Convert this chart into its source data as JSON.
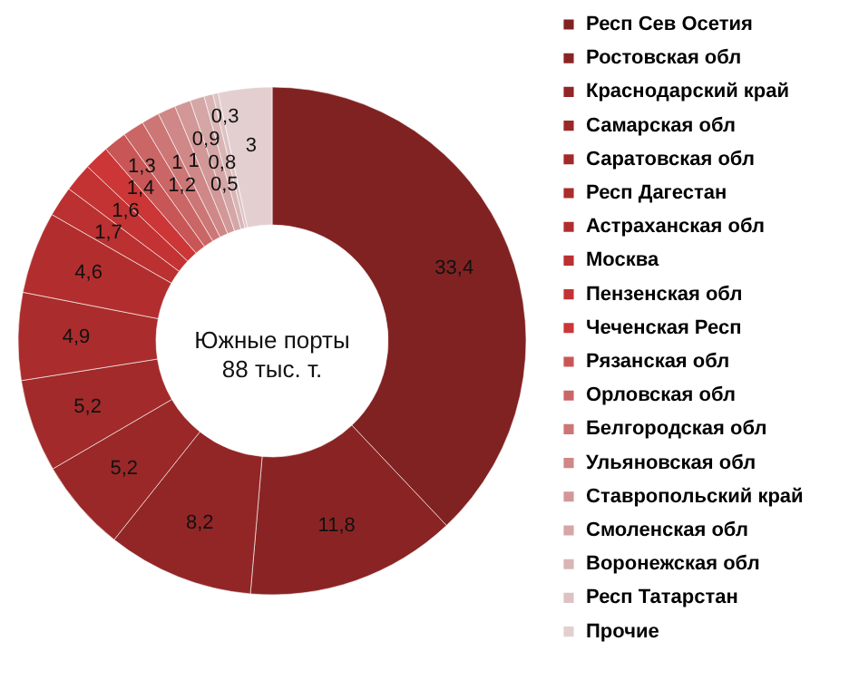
{
  "chart_data": {
    "type": "donut",
    "title": "Южные порты",
    "subtitle": "88 тыс. т.",
    "categories": [
      "Респ Сев Осетия",
      "Ростовская  обл",
      "Краснодарский  край",
      "Самарская  обл",
      "Саратовская  обл",
      "Респ Дагестан",
      "Астраханская  обл",
      "Москва",
      "Пензенская обл",
      "Чеченская  Респ",
      "Рязанская обл",
      "Орловская обл",
      "Белгородская обл",
      "Ульяновская  обл",
      "Ставропольский  край",
      "Смоленская обл",
      "Воронежская обл",
      "Респ Татарстан",
      "Прочие"
    ],
    "values": [
      33.4,
      11.8,
      8.2,
      5.2,
      5.2,
      4.9,
      4.6,
      1.7,
      1.6,
      1.4,
      1.3,
      1.2,
      1.0,
      1.0,
      0.9,
      0.8,
      0.5,
      0.3,
      3
    ],
    "colors": [
      "#812222",
      "#8a2424",
      "#922626",
      "#9a2828",
      "#a22a2a",
      "#aa2c2c",
      "#b22e2e",
      "#bb3030",
      "#c43333",
      "#cc3636",
      "#c95656",
      "#cb6666",
      "#cd7676",
      "#cf8787",
      "#d29797",
      "#d5a6a6",
      "#d9b5b5",
      "#ddc2c3",
      "#e4cfd0"
    ],
    "value_labels": [
      "33,4",
      "11,8",
      "8,2",
      "5,2",
      "5,2",
      "4,9",
      "4,6",
      "1,7",
      "1,6",
      "1,4",
      "1,3",
      "1,2",
      "1",
      "1",
      "0,9",
      "0,8",
      "0,5",
      "0,3",
      "3"
    ],
    "legend": "right"
  }
}
